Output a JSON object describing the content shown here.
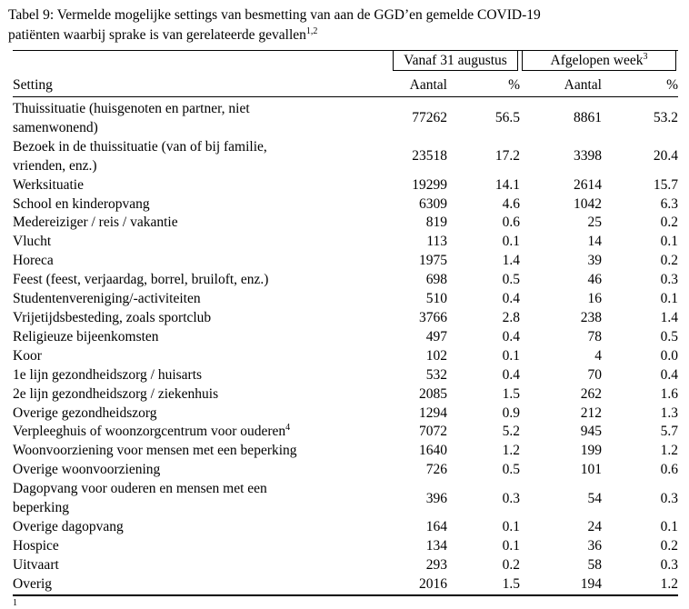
{
  "caption": {
    "line1": "Tabel 9: Vermelde mogelijke settings van besmetting van aan de GGD’en gemelde COVID-19",
    "line2": "patiënten waarbij sprake is van gerelateerde gevallen",
    "superscript": "1,2"
  },
  "table": {
    "groups": [
      {
        "label": "Vanaf 31 augustus",
        "sup": ""
      },
      {
        "label": "Afgelopen week",
        "sup": "3"
      }
    ],
    "headers": {
      "setting": "Setting",
      "aantal_vanaf": "Aantal",
      "pct_vanaf": "%",
      "aantal_week": "Aantal",
      "pct_week": "%"
    },
    "rows": [
      {
        "setting": "Thuissituatie (huisgenoten en partner, niet",
        "setting2": "samenwonend)",
        "vanaf_aantal": "77262",
        "vanaf_pct": "56.5",
        "week_aantal": "8861",
        "week_pct": "53.2"
      },
      {
        "setting": "Bezoek in de thuissituatie (van of bij familie,",
        "setting2": "vrienden, enz.)",
        "vanaf_aantal": "23518",
        "vanaf_pct": "17.2",
        "week_aantal": "3398",
        "week_pct": "20.4"
      },
      {
        "setting": "Werksituatie",
        "vanaf_aantal": "19299",
        "vanaf_pct": "14.1",
        "week_aantal": "2614",
        "week_pct": "15.7"
      },
      {
        "setting": "School en kinderopvang",
        "vanaf_aantal": "6309",
        "vanaf_pct": "4.6",
        "week_aantal": "1042",
        "week_pct": "6.3"
      },
      {
        "setting": "Medereiziger / reis / vakantie",
        "vanaf_aantal": "819",
        "vanaf_pct": "0.6",
        "week_aantal": "25",
        "week_pct": "0.2"
      },
      {
        "setting": "Vlucht",
        "vanaf_aantal": "113",
        "vanaf_pct": "0.1",
        "week_aantal": "14",
        "week_pct": "0.1"
      },
      {
        "setting": "Horeca",
        "vanaf_aantal": "1975",
        "vanaf_pct": "1.4",
        "week_aantal": "39",
        "week_pct": "0.2"
      },
      {
        "setting": "Feest (feest, verjaardag, borrel, bruiloft, enz.)",
        "vanaf_aantal": "698",
        "vanaf_pct": "0.5",
        "week_aantal": "46",
        "week_pct": "0.3"
      },
      {
        "setting": "Studentenvereniging/-activiteiten",
        "vanaf_aantal": "510",
        "vanaf_pct": "0.4",
        "week_aantal": "16",
        "week_pct": "0.1"
      },
      {
        "setting": "Vrijetijdsbesteding, zoals sportclub",
        "vanaf_aantal": "3766",
        "vanaf_pct": "2.8",
        "week_aantal": "238",
        "week_pct": "1.4"
      },
      {
        "setting": "Religieuze bijeenkomsten",
        "vanaf_aantal": "497",
        "vanaf_pct": "0.4",
        "week_aantal": "78",
        "week_pct": "0.5"
      },
      {
        "setting": "Koor",
        "vanaf_aantal": "102",
        "vanaf_pct": "0.1",
        "week_aantal": "4",
        "week_pct": "0.0"
      },
      {
        "setting": "1e lijn gezondheidszorg / huisarts",
        "vanaf_aantal": "532",
        "vanaf_pct": "0.4",
        "week_aantal": "70",
        "week_pct": "0.4"
      },
      {
        "setting": "2e lijn gezondheidszorg / ziekenhuis",
        "vanaf_aantal": "2085",
        "vanaf_pct": "1.5",
        "week_aantal": "262",
        "week_pct": "1.6"
      },
      {
        "setting": "Overige gezondheidszorg",
        "vanaf_aantal": "1294",
        "vanaf_pct": "0.9",
        "week_aantal": "212",
        "week_pct": "1.3"
      },
      {
        "setting": "Verpleeghuis of woonzorgcentrum voor ouderen",
        "sup": "4",
        "vanaf_aantal": "7072",
        "vanaf_pct": "5.2",
        "week_aantal": "945",
        "week_pct": "5.7"
      },
      {
        "setting": "Woonvoorziening voor mensen met een beperking",
        "vanaf_aantal": "1640",
        "vanaf_pct": "1.2",
        "week_aantal": "199",
        "week_pct": "1.2"
      },
      {
        "setting": "Overige woonvoorziening",
        "vanaf_aantal": "726",
        "vanaf_pct": "0.5",
        "week_aantal": "101",
        "week_pct": "0.6"
      },
      {
        "setting": "Dagopvang voor ouderen en mensen met een",
        "setting2": "beperking",
        "vanaf_aantal": "396",
        "vanaf_pct": "0.3",
        "week_aantal": "54",
        "week_pct": "0.3"
      },
      {
        "setting": "Overige dagopvang",
        "vanaf_aantal": "164",
        "vanaf_pct": "0.1",
        "week_aantal": "24",
        "week_pct": "0.1"
      },
      {
        "setting": "Hospice",
        "vanaf_aantal": "134",
        "vanaf_pct": "0.1",
        "week_aantal": "36",
        "week_pct": "0.2"
      },
      {
        "setting": "Uitvaart",
        "vanaf_aantal": "293",
        "vanaf_pct": "0.2",
        "week_aantal": "58",
        "week_pct": "0.3"
      },
      {
        "setting": "Overig",
        "vanaf_aantal": "2016",
        "vanaf_pct": "1.5",
        "week_aantal": "194",
        "week_pct": "1.2"
      }
    ]
  },
  "footnote_marker": "1"
}
